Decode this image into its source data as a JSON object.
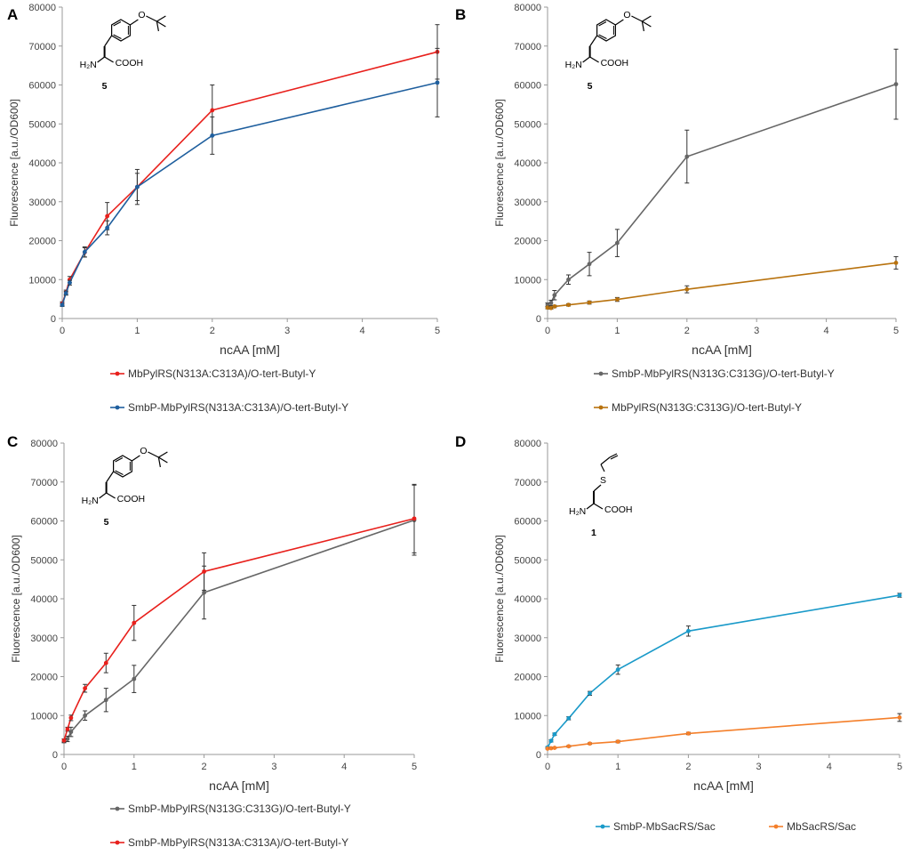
{
  "chart_data": [
    {
      "panel": "A",
      "type": "line",
      "xlabel": "ncAA [mM]",
      "ylabel": "Fluorescence [a.u./OD600]",
      "xlim": [
        0,
        5
      ],
      "ylim": [
        0,
        80000
      ],
      "xticks": [
        "0",
        "1",
        "2",
        "3",
        "4",
        "5"
      ],
      "yticks": [
        "0",
        "10000",
        "20000",
        "30000",
        "40000",
        "50000",
        "60000",
        "70000",
        "80000"
      ],
      "compound": {
        "label": "5",
        "amine": "H2N",
        "acid": "COOH"
      },
      "series": [
        {
          "name": "MbPylRS(N313A:C313A)/O-tert-Butyl-Y",
          "color": "#e8201c",
          "x": [
            0,
            0.05,
            0.1,
            0.3,
            0.6,
            1,
            2,
            5
          ],
          "y": [
            3800,
            6700,
            10000,
            17000,
            26300,
            33800,
            53500,
            68500
          ],
          "err": [
            500,
            600,
            800,
            1200,
            3500,
            4500,
            6500,
            7000
          ]
        },
        {
          "name": "SmbP-MbPylRS(N313A:C313A)/O-tert-Butyl-Y",
          "color": "#1f5f9e",
          "x": [
            0,
            0.05,
            0.1,
            0.3,
            0.6,
            1,
            2,
            5
          ],
          "y": [
            3500,
            6500,
            9200,
            17100,
            23300,
            33800,
            47000,
            60600
          ],
          "err": [
            400,
            500,
            600,
            1300,
            1800,
            3500,
            4800,
            8800
          ]
        }
      ]
    },
    {
      "panel": "B",
      "type": "line",
      "xlabel": "ncAA [mM]",
      "ylabel": "Fluorescence [a.u./OD600]",
      "xlim": [
        0,
        5
      ],
      "ylim": [
        0,
        80000
      ],
      "xticks": [
        "0",
        "1",
        "2",
        "3",
        "4",
        "5"
      ],
      "yticks": [
        "0",
        "10000",
        "20000",
        "30000",
        "40000",
        "50000",
        "60000",
        "70000",
        "80000"
      ],
      "compound": {
        "label": "5",
        "amine": "H2N",
        "acid": "COOH"
      },
      "series": [
        {
          "name": "SmbP-MbPylRS(N313G:C313G)/O-tert-Butyl-Y",
          "color": "#666666",
          "x": [
            0,
            0.05,
            0.1,
            0.3,
            0.6,
            1,
            2,
            5
          ],
          "y": [
            3500,
            4000,
            6000,
            10000,
            14000,
            19400,
            41600,
            60200
          ],
          "err": [
            500,
            700,
            1200,
            1200,
            3000,
            3500,
            6800,
            9000
          ]
        },
        {
          "name": "MbPylRS(N313G:C313G)/O-tert-Butyl-Y",
          "color": "#b8720e",
          "x": [
            0,
            0.05,
            0.1,
            0.3,
            0.6,
            1,
            2,
            5
          ],
          "y": [
            2800,
            2700,
            3100,
            3500,
            4100,
            4900,
            7500,
            14300
          ],
          "err": [
            300,
            300,
            300,
            300,
            400,
            500,
            900,
            1600
          ]
        }
      ]
    },
    {
      "panel": "C",
      "type": "line",
      "xlabel": "ncAA [mM]",
      "ylabel": "Fluorescence [a.u./OD600]",
      "xlim": [
        0,
        5
      ],
      "ylim": [
        0,
        80000
      ],
      "xticks": [
        "0",
        "1",
        "2",
        "3",
        "4",
        "5"
      ],
      "yticks": [
        "0",
        "10000",
        "20000",
        "30000",
        "40000",
        "50000",
        "60000",
        "70000",
        "80000"
      ],
      "compound": {
        "label": "5",
        "amine": "H2N",
        "acid": "COOH"
      },
      "series": [
        {
          "name": "SmbP-MbPylRS(N313G:C313G)/O-tert-Butyl-Y",
          "color": "#666666",
          "x": [
            0,
            0.05,
            0.1,
            0.3,
            0.6,
            1,
            2,
            5
          ],
          "y": [
            3500,
            4000,
            5800,
            10000,
            14000,
            19400,
            41600,
            60200
          ],
          "err": [
            500,
            700,
            1200,
            1200,
            3000,
            3500,
            6800,
            9000
          ]
        },
        {
          "name": "SmbP-MbPylRS(N313A:C313A)/O-tert-Butyl-Y",
          "color": "#e8201c",
          "x": [
            0,
            0.05,
            0.1,
            0.3,
            0.6,
            1,
            2,
            5
          ],
          "y": [
            3600,
            6500,
            9400,
            17000,
            23500,
            33800,
            47000,
            60600
          ],
          "err": [
            400,
            500,
            700,
            1000,
            2500,
            4500,
            4800,
            8800
          ]
        }
      ]
    },
    {
      "panel": "D",
      "type": "line",
      "xlabel": "ncAA [mM]",
      "ylabel": "Fluorescence [a.u./OD600]",
      "xlim": [
        0,
        5
      ],
      "ylim": [
        0,
        80000
      ],
      "xticks": [
        "0",
        "1",
        "2",
        "3",
        "4",
        "5"
      ],
      "yticks": [
        "0",
        "10000",
        "20000",
        "30000",
        "40000",
        "50000",
        "60000",
        "70000",
        "80000"
      ],
      "compound": {
        "label": "1",
        "amine": "H2N",
        "acid": "COOH",
        "sulfur": "S"
      },
      "series": [
        {
          "name": "SmbP-MbSacRS/Sac",
          "color": "#1a9ac9",
          "x": [
            0,
            0.05,
            0.1,
            0.3,
            0.6,
            1,
            2,
            5
          ],
          "y": [
            1800,
            3500,
            5200,
            9300,
            15700,
            21800,
            31700,
            40900
          ],
          "err": [
            200,
            300,
            300,
            400,
            500,
            1200,
            1300,
            500
          ]
        },
        {
          "name": "MbSacRS/Sac",
          "color": "#f47f2a",
          "x": [
            0,
            0.05,
            0.1,
            0.3,
            0.6,
            1,
            2,
            5
          ],
          "y": [
            1500,
            1600,
            1700,
            2100,
            2800,
            3300,
            5400,
            9500
          ],
          "err": [
            100,
            100,
            100,
            200,
            200,
            300,
            300,
            1000
          ]
        }
      ]
    }
  ]
}
